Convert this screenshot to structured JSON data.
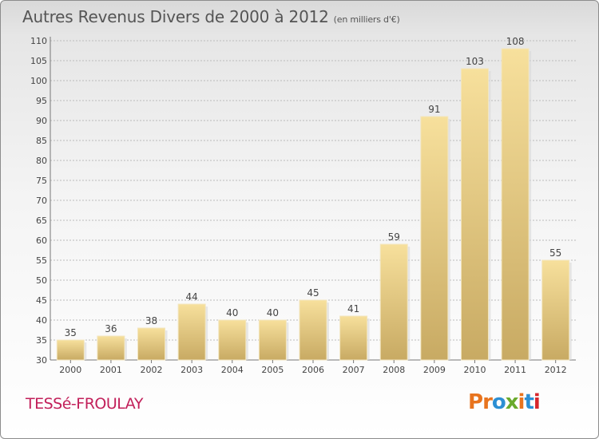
{
  "header": {
    "title": "Autres Revenus Divers de 2000 à 2012",
    "unit": "(en milliers d'€)"
  },
  "footer": {
    "commune": "TESSé-FROULAY",
    "brand": "Proxiti",
    "brand_colors": [
      "#e8741e",
      "#e8741e",
      "#2c8fd3",
      "#6aaa2c",
      "#e8741e",
      "#2c8fd3",
      "#d7262c"
    ]
  },
  "colors": {
    "bar_light": "#f7e09c",
    "bar_dark": "#c8aa63",
    "commune": "#c2205a",
    "axis_text": "#444444",
    "grid": "#bbbbbb"
  },
  "chart_data": {
    "type": "bar",
    "title": "Autres Revenus Divers de 2000 à 2012",
    "subtitle": "(en milliers d'€)",
    "categories": [
      "2000",
      "2001",
      "2002",
      "2003",
      "2004",
      "2005",
      "2006",
      "2007",
      "2008",
      "2009",
      "2010",
      "2011",
      "2012"
    ],
    "values": [
      35,
      36,
      38,
      44,
      40,
      40,
      45,
      41,
      59,
      91,
      103,
      108,
      55
    ],
    "ylim": [
      30,
      110
    ],
    "yticks": [
      30,
      35,
      40,
      45,
      50,
      55,
      60,
      65,
      70,
      75,
      80,
      85,
      90,
      95,
      100,
      105,
      110
    ],
    "grid": true,
    "data_labels": true
  }
}
